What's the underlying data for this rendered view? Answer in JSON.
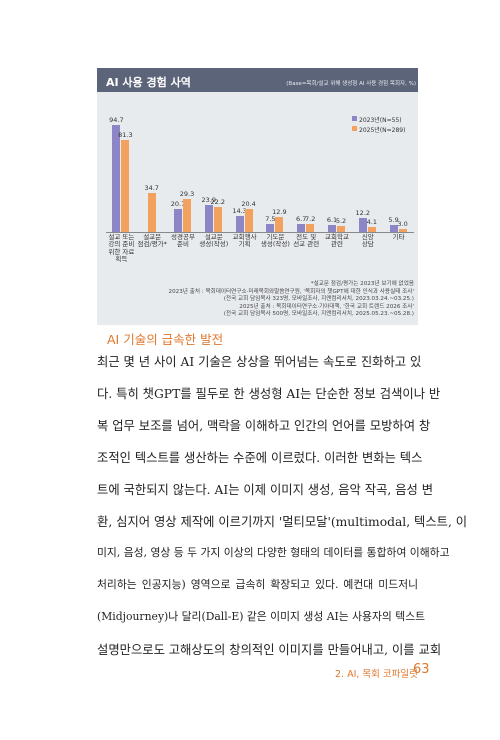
{
  "chart_data": {
    "type": "bar",
    "title": "AI 사용 경험 사역",
    "subtitle": "(Base=목회/설교 위해 생성형 AI 사용 경험 목회자, %)",
    "categories": [
      "설교 또는\n강의 준비\n위한 자료\n획득",
      "설교문\n점검/평가*",
      "성경공부\n준비",
      "설교문\n생성(작성)",
      "교회행사\n기획",
      "기도문\n생성(작성)",
      "전도 및\n선교 관련",
      "교회학교\n관련",
      "신앙\n상담",
      "기타"
    ],
    "series": [
      {
        "name": "2023년(N=55)",
        "color": "#8c86c6",
        "values": [
          94.7,
          null,
          20.7,
          23.9,
          14.3,
          7.5,
          6.7,
          6.1,
          12.2,
          5.9
        ]
      },
      {
        "name": "2025년(N=289)",
        "color": "#f2a15f",
        "values": [
          81.3,
          34.7,
          29.3,
          22.2,
          20.4,
          12.9,
          7.2,
          5.2,
          4.1,
          3.0
        ],
        "value_labels": [
          "81.3",
          "34.7",
          "29.3",
          "22.2",
          "20.4",
          "12.9",
          "7.2",
          "5.2",
          "4.1",
          "3.0"
        ]
      }
    ],
    "ylim": [
      0,
      100
    ],
    "notes": [
      "*설교문 점검/평가는 2023년 보기에 없었음",
      "2023년 출처 : 목회데이터연구소·미래목회와말씀연구원, '목회자의 챗GPT에 대한 인식과 사용실태 조사'",
      "(전국 교회 담임목사 323명, 모바일조사, 지앤컴리서치, 2023.03.24.~03.25.)",
      "2025년 출처 : 목회데이터연구소·기아대책, '한국 교회 트렌드 2026 조사'",
      "(전국 교회 담임목사 500명, 모바일조사, 지앤컴리서치, 2025.05.23.~05.28.)"
    ]
  },
  "section": {
    "heading": "AI 기술의 급속한 발전",
    "lines": [
      "최근 몇 년 사이 AI 기술은 상상을 뛰어넘는 속도로 진화하고 있",
      "다. 특히 챗GPT를 필두로 한 생성형 AI는 단순한 정보 검색이나 반",
      "복 업무 보조를 넘어, 맥락을 이해하고 인간의 언어를 모방하여 창",
      "조적인 텍스트를 생산하는 수준에 이르렀다. 이러한 변화는 텍스",
      "트에 국한되지 않는다. AI는 이제 이미지 생성, 음악 작곡, 음성 변",
      "환, 심지어 영상 제작에 이르기까지 '멀티모달'(multimodal, 텍스트, 이",
      "미지, 음성, 영상 등 두 가지 이상의 다양한 형태의 데이터를 통합하여 이해하고",
      "처리하는 인공지능) 영역으로 급속히 확장되고 있다. 예컨대 미드저니",
      "(Midjourney)나 달리(Dall-E) 같은 이미지 생성 AI는 사용자의 텍스트",
      "설명만으로도 고해상도의 창의적인 이미지를 만들어내고, 이를 교회"
    ]
  },
  "footer": {
    "chapter": "2. AI, 목회 코파일럿",
    "page": "63"
  }
}
